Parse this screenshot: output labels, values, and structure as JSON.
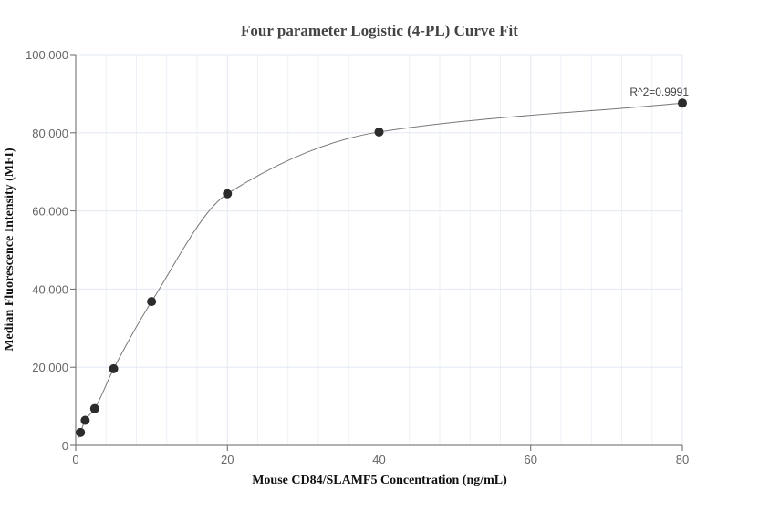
{
  "chart_data": {
    "type": "scatter",
    "title": "Four parameter Logistic (4-PL) Curve Fit",
    "xlabel": "Mouse CD84/SLAMF5 Concentration (ng/mL)",
    "ylabel": "Median Fluorescence Intensity (MFI)",
    "xlim": [
      0,
      80
    ],
    "ylim": [
      0,
      100000
    ],
    "xticks": [
      0,
      20,
      40,
      60,
      80
    ],
    "xtick_labels": [
      "0",
      "20",
      "40",
      "60",
      "80"
    ],
    "yticks": [
      0,
      20000,
      40000,
      60000,
      80000,
      100000
    ],
    "ytick_labels": [
      "0",
      "20,000",
      "40,000",
      "60,000",
      "80,000",
      "100,000"
    ],
    "grid": true,
    "points": {
      "x": [
        0.625,
        1.25,
        2.5,
        5,
        10,
        20,
        40,
        80
      ],
      "y": [
        3300,
        6400,
        9400,
        19600,
        36800,
        64400,
        80200,
        87600
      ]
    },
    "fit": "4-PL curve",
    "annotation": "R^2=0.9991",
    "colors": {
      "point": "#2b2b2b",
      "curve": "#777777",
      "grid": "#e3e8f3",
      "axis": "#666666"
    }
  }
}
